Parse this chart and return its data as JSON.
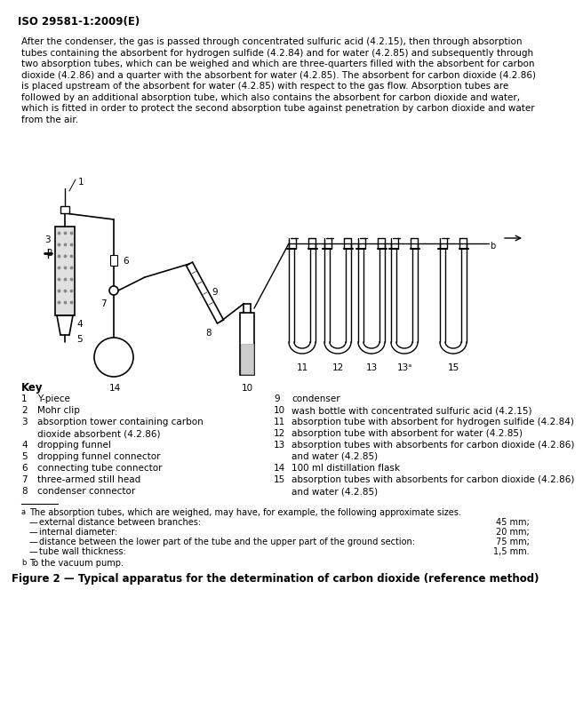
{
  "header": "ISO 29581-1:2009(E)",
  "body_text_lines": [
    "After the condenser, the gas is passed through concentrated sulfuric acid (4.2.15), then through absorption",
    "tubes containing the absorbent for hydrogen sulfide (4.2.84) and for water (4.2.85) and subsequently through",
    "two absorption tubes, which can be weighed and which are three-quarters filled with the absorbent for carbon",
    "dioxide (4.2.86) and a quarter with the absorbent for water (4.2.85). The absorbent for carbon dioxide (4.2.86)",
    "is placed upstream of the absorbent for water (4.2.85) with respect to the gas flow. Absorption tubes are",
    "followed by an additional absorption tube, which also contains the absorbent for carbon dioxide and water,",
    "which is fitted in order to protect the second absorption tube against penetration by carbon dioxide and water",
    "from the air."
  ],
  "key_title": "Key",
  "key_left": [
    [
      "1",
      "Y-piece",
      false
    ],
    [
      "2",
      "Mohr clip",
      false
    ],
    [
      "3",
      "absorption tower containing carbon",
      true
    ],
    [
      "",
      "dioxide absorbent (4.2.86)",
      false
    ],
    [
      "4",
      "dropping funnel",
      false
    ],
    [
      "5",
      "dropping funnel connector",
      false
    ],
    [
      "6",
      "connecting tube connector",
      false
    ],
    [
      "7",
      "three-armed still head",
      false
    ],
    [
      "8",
      "condenser connector",
      false
    ]
  ],
  "key_right": [
    [
      "9",
      "condenser",
      false
    ],
    [
      "10",
      "wash bottle with concentrated sulfuric acid (4.2.15)",
      false
    ],
    [
      "11",
      "absorption tube with absorbent for hydrogen sulfide (4.2.84)",
      false
    ],
    [
      "12",
      "absorption tube with absorbent for water (4.2.85)",
      false
    ],
    [
      "13",
      "absorption tubes with absorbents for carbon dioxide (4.2.86)",
      true
    ],
    [
      "",
      "and water (4.2.85)",
      false
    ],
    [
      "14",
      "100 ml distillation flask",
      false
    ],
    [
      "15",
      "absorption tubes with absorbents for carbon dioxide (4.2.86)",
      true
    ],
    [
      "",
      "and water (4.2.85)",
      false
    ]
  ],
  "footnote_a_text": "The absorption tubes, which are weighed, may have, for example, the following approximate sizes.",
  "footnote_a_items": [
    [
      "external distance between branches:",
      "45 mm;"
    ],
    [
      "internal diameter:",
      "20 mm;"
    ],
    [
      "distance between the lower part of the tube and the upper part of the ground section:",
      "75 mm;"
    ],
    [
      "tube wall thickness:",
      "1,5 mm."
    ]
  ],
  "footnote_b_text": "To the vacuum pump.",
  "figure_caption": "Figure 2 — Typical apparatus for the determination of carbon dioxide (reference method)",
  "bg_color": "#ffffff",
  "text_color": "#000000"
}
